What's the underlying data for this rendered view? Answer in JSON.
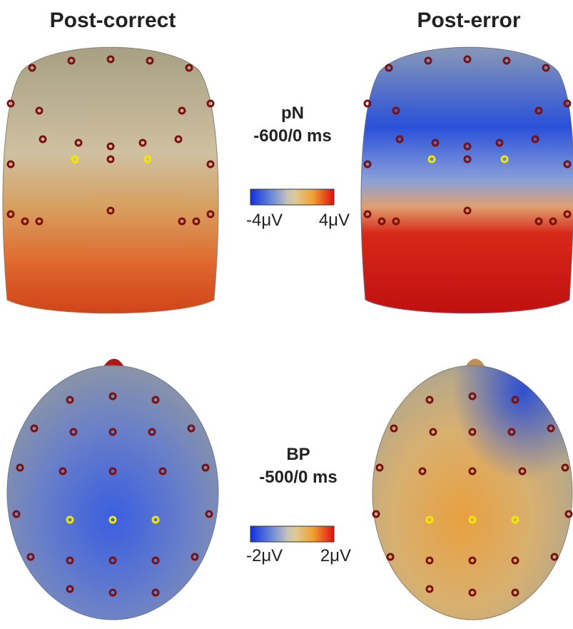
{
  "columns": [
    "Post-correct",
    "Post-error"
  ],
  "rows": [
    {
      "label": "pN",
      "window": "-600/0 ms",
      "scale": {
        "min": "-4μV",
        "max": "4μV"
      }
    },
    {
      "label": "BP",
      "window": "-500/0 ms",
      "scale": {
        "min": "-2μV",
        "max": "2μV"
      }
    }
  ]
}
